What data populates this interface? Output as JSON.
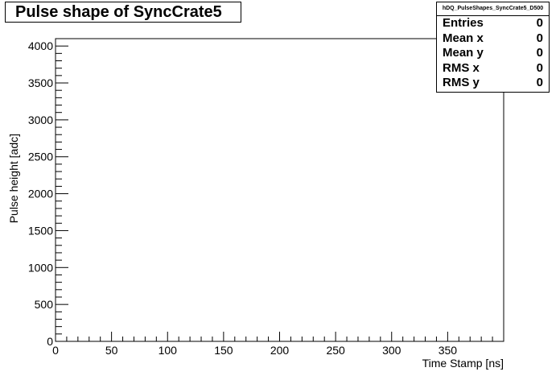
{
  "chart_data": {
    "type": "scatter",
    "title": "Pulse shape of SyncCrate5",
    "xlabel": "Time Stamp [ns]",
    "ylabel": "Pulse height [adc]",
    "xlim": [
      0,
      400
    ],
    "ylim": [
      0,
      4100
    ],
    "x_ticks": [
      0,
      50,
      100,
      150,
      200,
      250,
      300,
      350
    ],
    "y_ticks": [
      0,
      500,
      1000,
      1500,
      2000,
      2500,
      3000,
      3500,
      4000
    ],
    "grid": false,
    "points": [],
    "legend": "none"
  },
  "stats": {
    "name": "hDQ_PulseShapes_SyncCrate5_D500",
    "rows": [
      {
        "label": "Entries",
        "value": "0"
      },
      {
        "label": "Mean x",
        "value": "0"
      },
      {
        "label": "Mean y",
        "value": "0"
      },
      {
        "label": "RMS x",
        "value": "0"
      },
      {
        "label": "RMS y",
        "value": "0"
      }
    ]
  }
}
